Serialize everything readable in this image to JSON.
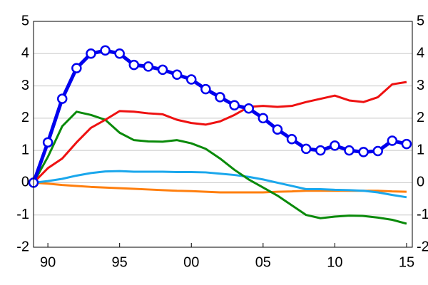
{
  "chart_data": {
    "type": "line",
    "x": [
      1989,
      1990,
      1991,
      1992,
      1993,
      1994,
      1995,
      1996,
      1997,
      1998,
      1999,
      2000,
      2001,
      2002,
      2003,
      2004,
      2005,
      2006,
      2007,
      2008,
      2009,
      2010,
      2011,
      2012,
      2013,
      2014,
      2015
    ],
    "series": [
      {
        "color": "#ff7f0e",
        "values": [
          0,
          -0.03,
          -0.07,
          -0.1,
          -0.13,
          -0.15,
          -0.17,
          -0.19,
          -0.21,
          -0.23,
          -0.25,
          -0.26,
          -0.28,
          -0.3,
          -0.3,
          -0.3,
          -0.3,
          -0.28,
          -0.27,
          -0.25,
          -0.25,
          -0.25,
          -0.25,
          -0.25,
          -0.25,
          -0.27,
          -0.28
        ]
      },
      {
        "color": "#1aa7ec",
        "values": [
          0,
          0.05,
          0.12,
          0.22,
          0.3,
          0.35,
          0.36,
          0.34,
          0.34,
          0.34,
          0.33,
          0.33,
          0.32,
          0.28,
          0.24,
          0.18,
          0.1,
          0,
          -0.1,
          -0.2,
          -0.2,
          -0.22,
          -0.23,
          -0.25,
          -0.3,
          -0.38,
          -0.45
        ]
      },
      {
        "color": "#0a8a0a",
        "values": [
          0,
          0.8,
          1.75,
          2.2,
          2.1,
          1.95,
          1.55,
          1.32,
          1.28,
          1.27,
          1.32,
          1.22,
          1.05,
          0.75,
          0.4,
          0.1,
          -0.15,
          -0.4,
          -0.7,
          -1.0,
          -1.1,
          -1.05,
          -1.02,
          -1.03,
          -1.08,
          -1.15,
          -1.27
        ]
      },
      {
        "color": "#ee1111",
        "values": [
          0,
          0.45,
          0.75,
          1.25,
          1.7,
          1.95,
          2.22,
          2.2,
          2.15,
          2.12,
          1.95,
          1.85,
          1.8,
          1.9,
          2.1,
          2.35,
          2.38,
          2.35,
          2.38,
          2.5,
          2.6,
          2.7,
          2.55,
          2.5,
          2.65,
          3.05,
          3.12
        ]
      },
      {
        "color": "#0000ee",
        "markers": true,
        "values": [
          0,
          1.25,
          2.6,
          3.55,
          4.0,
          4.1,
          4.0,
          3.65,
          3.6,
          3.5,
          3.35,
          3.2,
          2.9,
          2.65,
          2.4,
          2.3,
          2.0,
          1.65,
          1.35,
          1.05,
          1.0,
          1.15,
          1.0,
          0.95,
          0.98,
          1.3,
          1.2
        ]
      }
    ],
    "xlim": [
      1989,
      2015.4
    ],
    "xticks": [
      {
        "value": 1990,
        "label": "90"
      },
      {
        "value": 1995,
        "label": "95"
      },
      {
        "value": 2000,
        "label": "00"
      },
      {
        "value": 2005,
        "label": "05"
      },
      {
        "value": 2010,
        "label": "10"
      },
      {
        "value": 2015,
        "label": "15"
      }
    ],
    "ylim": [
      -2,
      5
    ],
    "yticks": [
      -2,
      -1,
      0,
      1,
      2,
      3,
      4,
      5
    ],
    "grid": true
  }
}
